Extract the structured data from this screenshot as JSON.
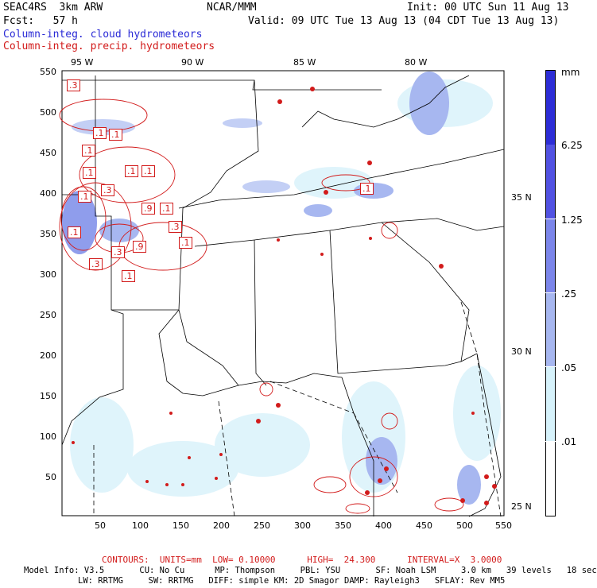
{
  "header": {
    "left1": "SEAC4RS  3km ARW",
    "center1": "NCAR/MMM",
    "right1": "Init: 00 UTC Sun 11 Aug 13",
    "left2": "Fcst:   57 h",
    "right2": "Valid: 09 UTC Tue 13 Aug 13 (04 CDT Tue 13 Aug 13)",
    "field1": "Column-integ. cloud hydrometeors",
    "field2": "Column-integ. precip. hydrometeors"
  },
  "colors": {
    "cloud_field": "#2a2ad6",
    "precip_field": "#d21b1b",
    "bar_levels": [
      "#ffffff",
      "#d6f2fb",
      "#a7b7f0",
      "#7c86ea",
      "#5252e2",
      "#2d2dd6"
    ]
  },
  "axes": {
    "top_lon": [
      "95 W",
      "90 W",
      "85 W",
      "80 W"
    ],
    "right_lat": [
      "35 N",
      "30 N",
      "25 N"
    ],
    "y_ticks": [
      "550",
      "500",
      "450",
      "400",
      "350",
      "300",
      "250",
      "200",
      "150",
      "100",
      "50"
    ],
    "x_ticks": [
      "50",
      "100",
      "150",
      "200",
      "250",
      "300",
      "350",
      "400",
      "450",
      "500",
      "550"
    ]
  },
  "colorbar": {
    "unit": "mm",
    "labels": [
      "6.25",
      "1.25",
      ".25",
      ".05",
      ".01"
    ]
  },
  "contour_labels": [
    ".3",
    ".1",
    ".1",
    ".1",
    ".1",
    ".1",
    ".1",
    ".3",
    ".1",
    ".9",
    ".1",
    ".3",
    ".1",
    ".1",
    ".3",
    ".9",
    ".3",
    ".1",
    ".1"
  ],
  "contours": {
    "line": "CONTOURS:  UNITS=mm  LOW= 0.10000      HIGH=  24.300      INTERVAL=X  3.0000"
  },
  "model_info": {
    "line1": "Model Info: V3.5       CU: No Cu      MP: Thompson     PBL: YSU       SF: Noah LSM     3.0 km   39 levels   18 sec",
    "line2": "LW: RRTMG     SW: RRTMG   DIFF: simple KM: 2D Smagor DAMP: Rayleigh3   SFLAY: Rev MM5"
  }
}
